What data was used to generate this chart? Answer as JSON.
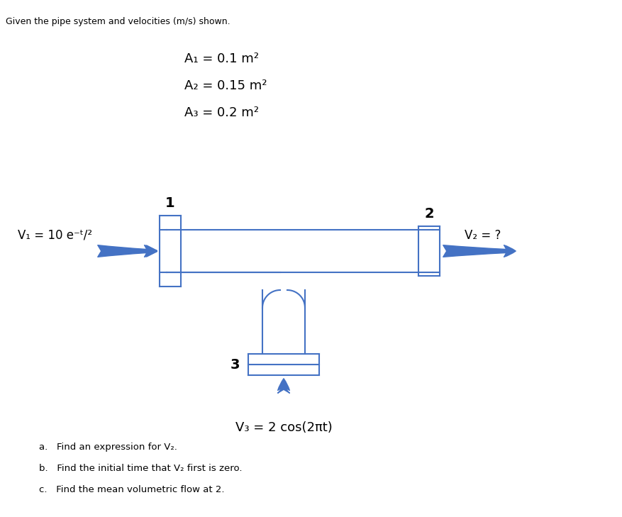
{
  "title_text": "Given the pipe system and velocities (m/s) shown.",
  "area_labels": [
    "A₁ = 0.1 m²",
    "A₂ = 0.15 m²",
    "A₃ = 0.2 m²"
  ],
  "v1_label": "V₁ = 10 e⁻ᵗ/²",
  "v2_label": "V₂ = ?",
  "v3_label": "V₃ = 2 cos(2πt)",
  "label_1": "1",
  "label_2": "2",
  "label_3": "3",
  "questions": [
    "a.   Find an expression for V₂.",
    "b.   Find the initial time that V₂ first is zero.",
    "c.   Find the mean volumetric flow at 2."
  ],
  "pipe_color": "#4472C4",
  "pipe_line_color": "#4472C4",
  "bg_color": "#ffffff",
  "arrow_color": "#4472C4",
  "text_color": "#000000"
}
